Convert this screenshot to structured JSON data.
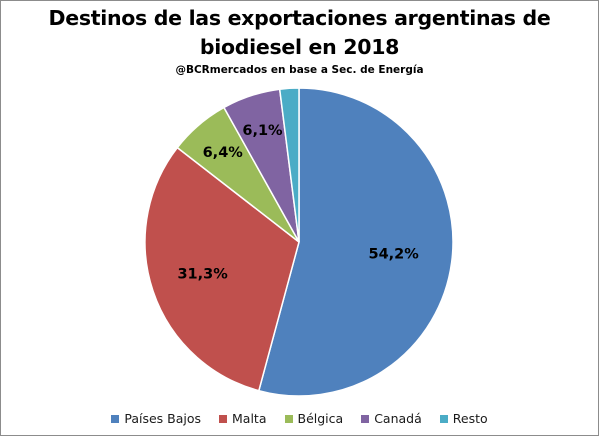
{
  "chart_data": {
    "type": "pie",
    "title": "Destinos de las exportaciones argentinas de biodiesel en 2018",
    "title_lines": [
      "Destinos de las exportaciones argentinas de",
      "biodiesel en 2018"
    ],
    "subtitle": "@BCRmercados en base a Sec. de Energía",
    "categories": [
      "Países Bajos",
      "Malta",
      "Bélgica",
      "Canadá",
      "Resto"
    ],
    "values": [
      54.2,
      31.3,
      6.4,
      6.1,
      2.0
    ],
    "data_labels": [
      "54,2%",
      "31,3%",
      "6,4%",
      "6,1%",
      ""
    ],
    "colors": [
      "#4f81bd",
      "#c0504d",
      "#9bbb59",
      "#8064a2",
      "#4bacc6"
    ],
    "unit": "%",
    "legend_position": "bottom",
    "start_angle": "top, clockwise"
  }
}
